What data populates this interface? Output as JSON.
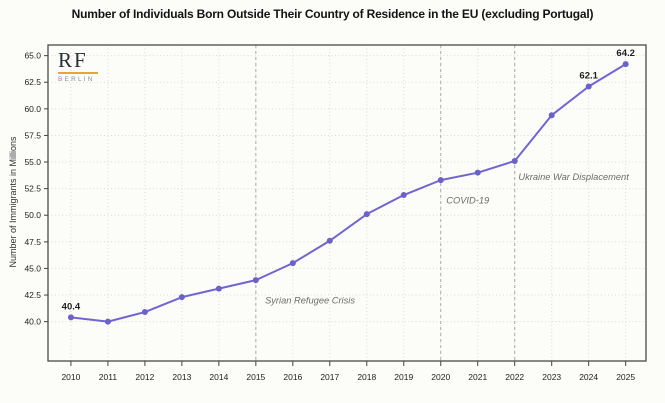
{
  "title": "Number of Individuals Born Outside Their Country of Residence in the EU (excluding Portugal)",
  "logo": {
    "text": "RF",
    "subtext": "BERLIN",
    "accent_color": "#E8A33D"
  },
  "y_axis_label": "Number of Immigrants in Millions",
  "colors": {
    "line": "#7166CE",
    "marker": "#6C61C8",
    "grid": "#DBDBD5",
    "event_line": "#ACACA7",
    "border": "#4A4A4A",
    "tick": "#444444",
    "tick_label": "#222222",
    "point_label": "#1F1F1F",
    "annotation": "#6B6B6B",
    "background": "#FCFCF9"
  },
  "chart_data": {
    "type": "line",
    "title": "Number of Individuals Born Outside Their Country of Residence in the EU (excluding Portugal)",
    "xlabel": "",
    "ylabel": "Number of Immigrants in Millions",
    "x": [
      2010,
      2011,
      2012,
      2013,
      2014,
      2015,
      2016,
      2017,
      2018,
      2019,
      2020,
      2021,
      2022,
      2023,
      2024,
      2025
    ],
    "series": [
      {
        "name": "Immigrants in Millions",
        "values": [
          40.4,
          40.0,
          40.9,
          42.3,
          43.1,
          43.9,
          45.5,
          47.6,
          50.1,
          51.9,
          53.3,
          54.0,
          55.1,
          59.4,
          62.1,
          64.2
        ]
      }
    ],
    "yticks": [
      40.0,
      42.5,
      45.0,
      47.5,
      50.0,
      52.5,
      55.0,
      57.5,
      60.0,
      62.5,
      65.0
    ],
    "ytick_labels": [
      "40.0",
      "42.5",
      "45.0",
      "47.5",
      "50.0",
      "52.5",
      "55.0",
      "57.5",
      "60.0",
      "62.5",
      "65.0"
    ],
    "xtick_labels": [
      "2010",
      "2011",
      "2012",
      "2013",
      "2014",
      "2015",
      "2016",
      "2017",
      "2018",
      "2019",
      "2020",
      "2021",
      "2022",
      "2023",
      "2024",
      "2025"
    ],
    "ylim": [
      36.3,
      66.0
    ],
    "xlim": [
      2009.38,
      2025.55
    ],
    "grid": "dotted, both axes",
    "legend": "none",
    "point_labels": [
      {
        "x": 2010,
        "label": "40.4"
      },
      {
        "x": 2024,
        "label": "62.1"
      },
      {
        "x": 2025,
        "label": "64.2"
      }
    ],
    "event_lines": [
      {
        "x": 2015
      },
      {
        "x": 2020
      },
      {
        "x": 2022
      }
    ],
    "annotations": [
      {
        "text": "Syrian Refugee Crisis",
        "x": 2015.25,
        "y": 42.0
      },
      {
        "text": "COVID-19",
        "x": 2020.15,
        "y": 51.4
      },
      {
        "text": "Ukraine War Displacement",
        "x": 2022.1,
        "y": 53.6
      }
    ]
  }
}
